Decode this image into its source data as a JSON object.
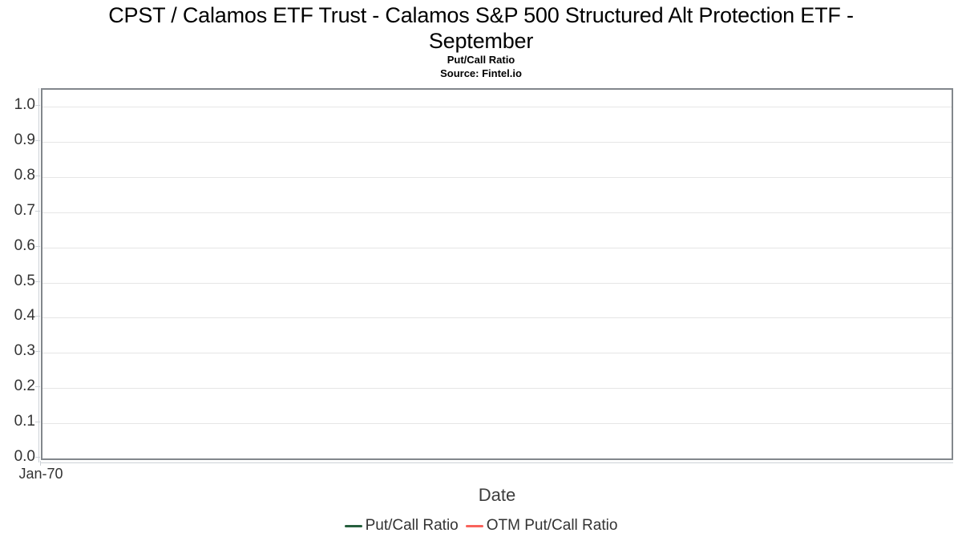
{
  "header": {
    "title_line1": "CPST / Calamos ETF Trust - Calamos S&P 500 Structured Alt Protection ETF -",
    "title_line2": "September",
    "subtitle": "Put/Call Ratio",
    "source": "Source: Fintel.io"
  },
  "chart_data": {
    "type": "line",
    "title": "CPST / Calamos ETF Trust - Calamos S&P 500 Structured Alt Protection ETF - September",
    "subtitle": "Put/Call Ratio",
    "source": "Source: Fintel.io",
    "xlabel": "Date",
    "ylabel": "",
    "ylim": [
      0.0,
      1.05
    ],
    "y_tick_labels": [
      "0.0",
      "0.1",
      "0.2",
      "0.3",
      "0.4",
      "0.5",
      "0.6",
      "0.7",
      "0.8",
      "0.9",
      "1.0"
    ],
    "x_tick_labels": [
      "Jan-70"
    ],
    "grid": true,
    "legend_position": "bottom",
    "series": [
      {
        "name": "Put/Call Ratio",
        "color": "#265f3d",
        "x": [],
        "values": []
      },
      {
        "name": "OTM Put/Call Ratio",
        "color": "#f9635c",
        "x": [],
        "values": []
      }
    ],
    "notes": "plot area is empty - no data points are drawn"
  },
  "colors": {
    "plot_border": "#82878c",
    "gridline": "#e6e6e6",
    "axis_line": "#ccd1d6",
    "axis_text": "#333333",
    "title_text": "#000000"
  }
}
